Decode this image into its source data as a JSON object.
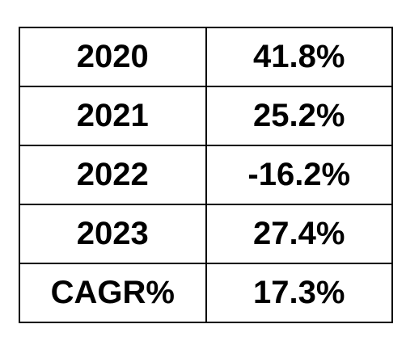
{
  "table": {
    "rows": [
      [
        "2020",
        "41.8%"
      ],
      [
        "2021",
        "25.2%"
      ],
      [
        "2022",
        "-16.2%"
      ],
      [
        "2023",
        "27.4%"
      ],
      [
        "CAGR%",
        "17.3%"
      ]
    ]
  }
}
